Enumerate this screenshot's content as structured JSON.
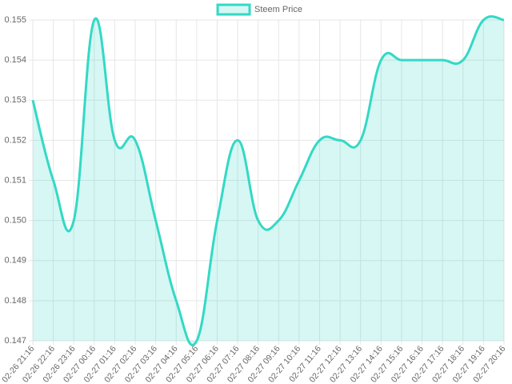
{
  "chart_data": {
    "type": "line",
    "categories": [
      "02-26 21:16",
      "02-26 22:16",
      "02-26 23:16",
      "02-27 00:16",
      "02-27 01:16",
      "02-27 02:16",
      "02-27 03:16",
      "02-27 04:16",
      "02-27 05:16",
      "02-27 06:16",
      "02-27 07:16",
      "02-27 08:16",
      "02-27 09:16",
      "02-27 10:16",
      "02-27 11:16",
      "02-27 12:16",
      "02-27 13:16",
      "02-27 14:16",
      "02-27 15:16",
      "02-27 16:16",
      "02-27 17:16",
      "02-27 18:16",
      "02-27 19:16",
      "02-27 20:16"
    ],
    "series": [
      {
        "name": "Steem Price",
        "color": "#33d9c5",
        "fill": "rgba(51,217,197,0.2)",
        "values": [
          0.153,
          0.151,
          0.15,
          0.155,
          0.152,
          0.152,
          0.15,
          0.148,
          0.147,
          0.15,
          0.152,
          0.15,
          0.15,
          0.151,
          0.152,
          0.152,
          0.152,
          0.154,
          0.154,
          0.154,
          0.154,
          0.154,
          0.155,
          0.155
        ]
      }
    ],
    "ylim": [
      0.147,
      0.155
    ],
    "yticks": [
      0.147,
      0.148,
      0.149,
      {
        "value": 0.15,
        "label": "0.150"
      },
      0.151,
      0.152,
      0.153,
      0.154,
      0.155
    ],
    "grid": true,
    "legend": "top"
  }
}
